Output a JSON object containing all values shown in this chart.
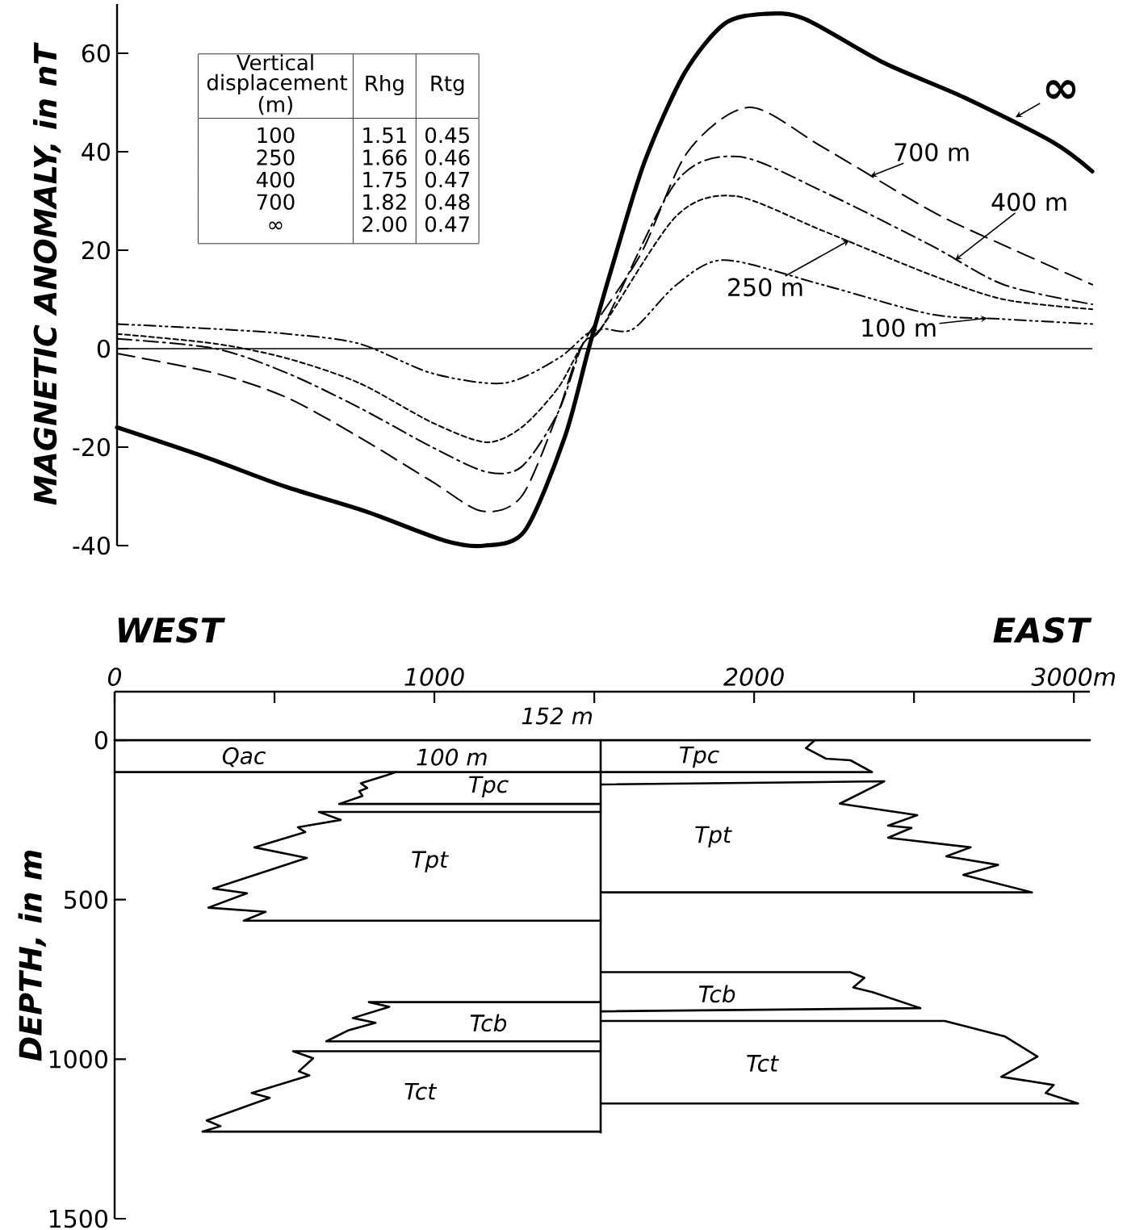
{
  "chart_data": [
    {
      "type": "line",
      "ylabel": "MAGNETIC ANOMALY, in nT",
      "xlim": [
        0,
        3050
      ],
      "ylim": [
        -40,
        70
      ],
      "yticks": [
        -40,
        -20,
        0,
        20,
        40,
        60
      ],
      "tick_labels": "y",
      "ref_lines": [
        {
          "axis": "y",
          "value": 0
        }
      ],
      "series": [
        {
          "color": "#000000",
          "line_style": "solid",
          "x": [
            0,
            275,
            525,
            775,
            1025,
            1150,
            1275,
            1400,
            1475,
            1550,
            1650,
            1775,
            1900,
            2025,
            2150,
            2400,
            2650,
            2925,
            3050
          ],
          "values": [
            -16,
            -22,
            -28,
            -33,
            -39,
            -40,
            -37,
            -18,
            0,
            17,
            38,
            56,
            66,
            68,
            67,
            58,
            51,
            42,
            36
          ]
        },
        {
          "color": "#000000",
          "line_style": "dashed",
          "x": [
            0,
            308,
            533,
            758,
            985,
            1141,
            1265,
            1379,
            1457,
            1636,
            1785,
            1977,
            2205,
            2545,
            2773,
            3050
          ],
          "values": [
            -1,
            -5,
            -10,
            -18,
            -27,
            -33,
            -30,
            -13,
            1,
            19,
            40,
            49,
            41,
            28,
            21,
            13
          ]
        },
        {
          "color": "#000000",
          "line_style": "dash dot",
          "x": [
            0,
            308,
            533,
            758,
            985,
            1154,
            1265,
            1379,
            1457,
            1523,
            1750,
            1944,
            2205,
            2545,
            2773,
            3050
          ],
          "values": [
            2,
            0,
            -5,
            -12,
            -20,
            -25,
            -24,
            -13,
            1,
            5,
            34,
            39,
            32,
            21,
            13,
            9
          ]
        },
        {
          "color": "#000000",
          "line_style": "dotted",
          "x": [
            0,
            308,
            533,
            758,
            985,
            1154,
            1265,
            1379,
            1457,
            1523,
            1750,
            1932,
            2205,
            2545,
            2773,
            3050
          ],
          "values": [
            3,
            1,
            -2,
            -7,
            -15,
            -19,
            -16,
            -8,
            1,
            5,
            27,
            31,
            24,
            15,
            10,
            8
          ]
        },
        {
          "color": "#000000",
          "line_style": "dash dot dot",
          "x": [
            0,
            308,
            533,
            758,
            985,
            1210,
            1379,
            1470,
            1523,
            1614,
            1750,
            1899,
            2205,
            2545,
            2773,
            3050
          ],
          "values": [
            5,
            4,
            3,
            1,
            -5,
            -7,
            -2,
            3,
            4,
            4,
            13,
            18,
            13,
            7,
            6,
            5
          ]
        }
      ],
      "annotations": [
        "Vertical displacement (m)",
        "Rhg",
        "Rtg",
        "100",
        "1.51",
        "0.45",
        "250",
        "1.66",
        "0.46",
        "400",
        "1.75",
        "0.47",
        "700",
        "1.82",
        "0.48",
        "∞",
        "2.00",
        "0.47",
        {
          "text": "∞",
          "x": 2810,
          "y": 47
        },
        {
          "text": "700 m",
          "x": 2356,
          "y": 35
        },
        {
          "text": "400 m",
          "x": 2621,
          "y": 18
        },
        {
          "text": "250 m",
          "x": 2290,
          "y": 22
        },
        {
          "text": "100 m",
          "x": 2722,
          "y": 6.2
        }
      ]
    },
    {
      "type": "line",
      "ylabel": "DEPTH, in m",
      "xlim": [
        0,
        3050
      ],
      "ylim": [
        1500,
        -152
      ],
      "xticks": [
        0,
        {
          "value": 500,
          "label": null
        },
        1000,
        {
          "value": 1500,
          "label": null
        },
        2000,
        {
          "value": 2500,
          "label": null
        },
        {
          "value": 3000,
          "label": "3000m"
        }
      ],
      "yticks": [
        0,
        500,
        1000,
        1500
      ],
      "series": [
        {
          "color": "#000000",
          "x": [
            0,
            3050
          ],
          "values": [
            0,
            0
          ]
        },
        {
          "color": "#000000",
          "x": [
            1520,
            1520
          ],
          "values": [
            0,
            1230
          ]
        },
        {
          "color": "#000000",
          "x": [
            880,
            851,
            770,
            790,
            765,
            775,
            702,
            1520
          ],
          "values": [
            100,
            110,
            135,
            150,
            160,
            175,
            200,
            200
          ]
        },
        {
          "color": "#000000",
          "x": [
            1520,
            639,
            707,
            573,
            596,
            437,
            601,
            308,
            414,
            293,
            472,
            404,
            1520
          ],
          "values": [
            225,
            225,
            250,
            273,
            288,
            336,
            369,
            465,
            480,
            525,
            538,
            566,
            566
          ]
        },
        {
          "color": "#000000",
          "x": [
            1520,
            795,
            859,
            745,
            816,
            732,
            662,
            1520
          ],
          "values": [
            821,
            821,
            836,
            871,
            886,
            909,
            944,
            944
          ]
        },
        {
          "color": "#000000",
          "x": [
            1520,
            558,
            621,
            576,
            609,
            429,
            485,
            288,
            331,
            275,
            1520
          ],
          "values": [
            975,
            975,
            997,
            1038,
            1051,
            1106,
            1121,
            1192,
            1210,
            1227,
            1227
          ]
        },
        {
          "color": "#000000",
          "x": [
            2190,
            2162,
            2225,
            2301,
            2369,
            1520,
            0
          ],
          "values": [
            0,
            25,
            58,
            63,
            100,
            100,
            100
          ]
        },
        {
          "color": "#000000",
          "x": [
            1520,
            2407,
            2268,
            2510,
            2419,
            2492,
            2419,
            2677,
            2601,
            2763,
            2654,
            2869,
            1520
          ],
          "values": [
            139,
            129,
            199,
            235,
            268,
            275,
            306,
            336,
            364,
            391,
            422,
            477,
            477
          ]
        },
        {
          "color": "#000000",
          "x": [
            1520,
            2300,
            2345,
            2310,
            2370,
            2520,
            1520
          ],
          "values": [
            727,
            727,
            745,
            775,
            790,
            840,
            850
          ]
        },
        {
          "color": "#000000",
          "x": [
            1520,
            2596,
            2785,
            2886,
            2773,
            2937,
            2912,
            3013,
            1520
          ],
          "values": [
            880,
            880,
            929,
            992,
            1055,
            1081,
            1106,
            1139,
            1139
          ]
        }
      ],
      "annotations": [
        "WEST",
        "EAST",
        "152 m",
        "Qac",
        "100 m",
        "Tpc",
        "Tpt",
        "Tcb",
        "Tct",
        "Tpc",
        "Tpt",
        "Tcb",
        "Tct"
      ]
    }
  ]
}
